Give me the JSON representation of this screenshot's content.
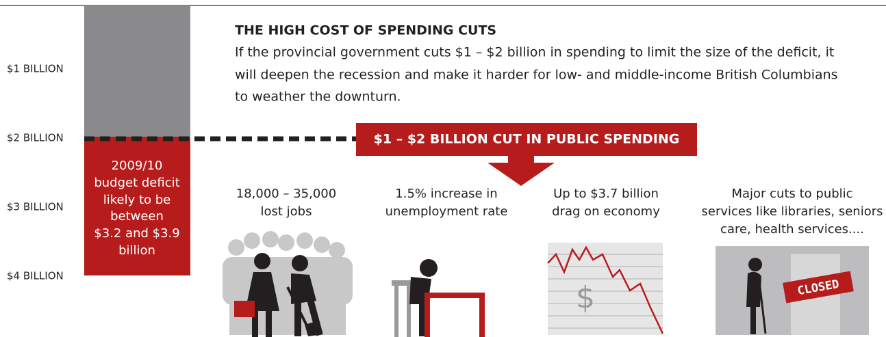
{
  "axis_labels": [
    "$1 BILLION",
    "$2 BILLION",
    "$3 BILLION",
    "$4 BILLION"
  ],
  "bar_label": [
    "2009/10",
    "budget deficit",
    "likely to be",
    "between",
    "$3.2 and $3.9",
    "billion"
  ],
  "title": "THE HIGH COST OF SPENDING CUTS",
  "paragraph": [
    "If the provincial government cuts $1 – $2 billion in spending to limit the size of the deficit, it",
    "will deepen the recession and make it harder for low- and middle-income British Columbians",
    "to weather the downturn."
  ],
  "banner": "$1 – $2 BILLION CUT IN PUBLIC SPENDING",
  "items": [
    {
      "lines": [
        "18,000 – 35,000",
        "lost jobs"
      ]
    },
    {
      "lines": [
        "1.5% increase in",
        "unemployment rate"
      ]
    },
    {
      "lines": [
        "Up to $3.7 billion",
        "drag on economy"
      ]
    },
    {
      "lines": [
        "Major cuts to public",
        "services like libraries, seniors",
        "care, health services...."
      ]
    }
  ],
  "icon_symbol": "$",
  "sign_text": "CLOSED"
}
